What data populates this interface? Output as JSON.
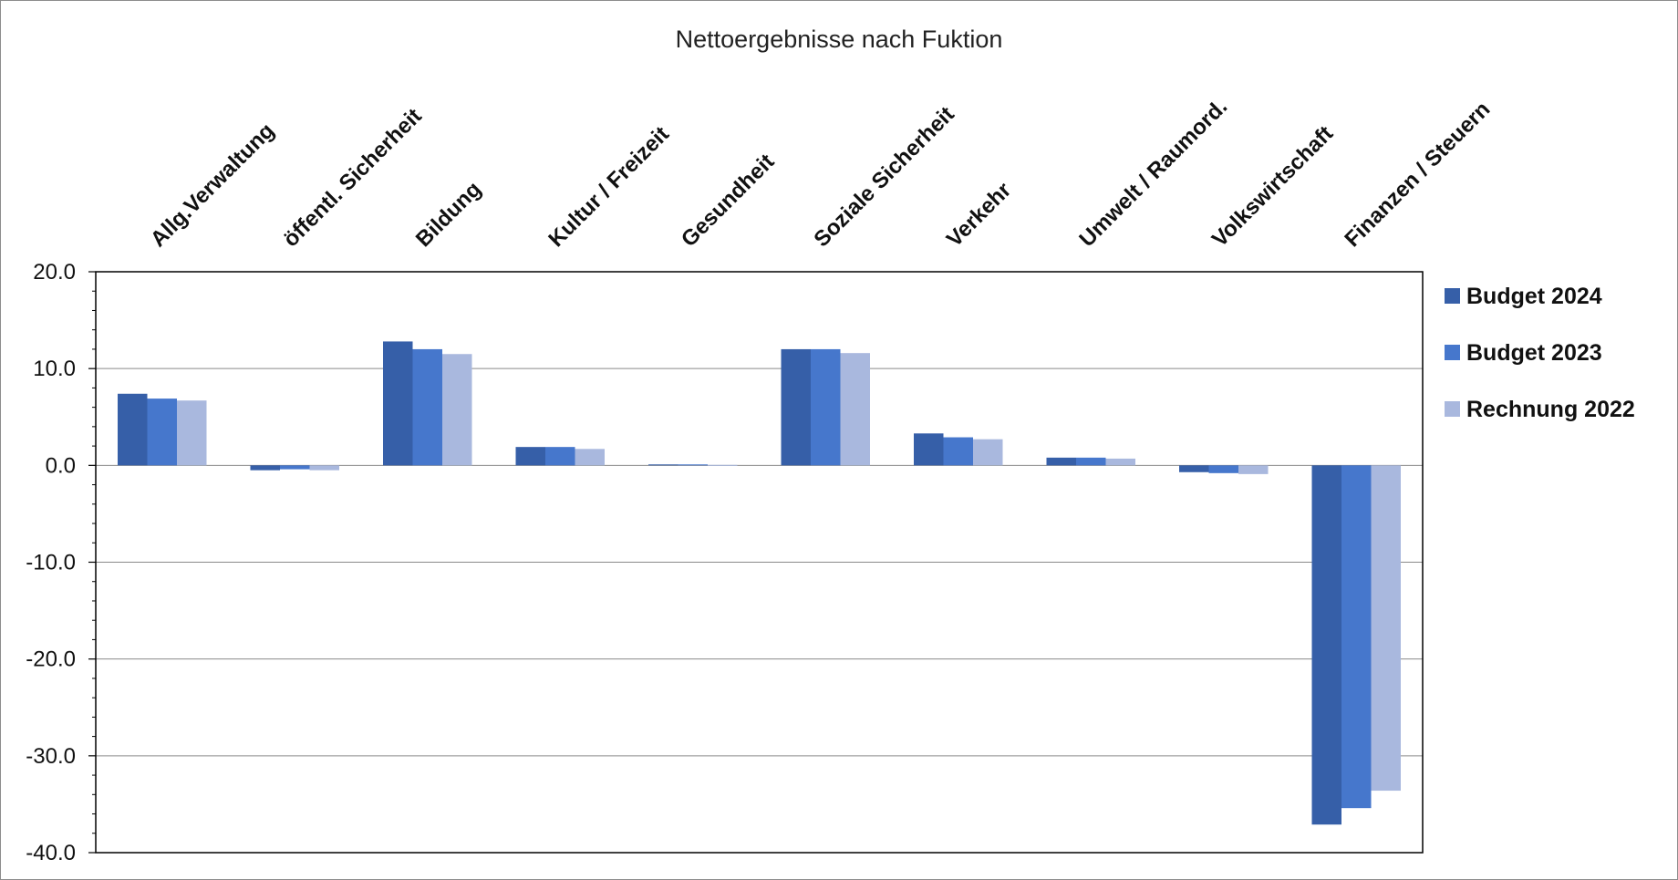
{
  "chart_data": {
    "type": "bar",
    "title": "Nettoergebnisse nach Fuktion",
    "xlabel": "",
    "ylabel": "",
    "ylim": [
      -40,
      20
    ],
    "yticks": [
      "20.0",
      "10.0",
      "0.0",
      "-10.0",
      "-20.0",
      "-30.0",
      "-40.0"
    ],
    "grid": true,
    "legend_position": "right",
    "category_label_position": "top",
    "categories": [
      "Allg.Verwaltung",
      "öffentl. Sicherheit",
      "Bildung",
      "Kultur / Freizeit",
      "Gesundheit",
      "Soziale Sicherheit",
      "Verkehr",
      "Umwelt / Raumord.",
      "Volkswirtschaft",
      "Finanzen / Steuern"
    ],
    "series": [
      {
        "name": "Budget 2024",
        "color": "#365fa8",
        "values": [
          7.4,
          -0.5,
          12.8,
          1.9,
          0.1,
          12.0,
          3.3,
          0.8,
          -0.7,
          -37.1
        ]
      },
      {
        "name": "Budget 2023",
        "color": "#4677cc",
        "values": [
          6.9,
          -0.4,
          12.0,
          1.9,
          0.1,
          12.0,
          2.9,
          0.8,
          -0.8,
          -35.4
        ]
      },
      {
        "name": "Rechnung 2022",
        "color": "#a9b8de",
        "values": [
          6.7,
          -0.5,
          11.5,
          1.7,
          0.05,
          11.6,
          2.7,
          0.7,
          -0.9,
          -33.6
        ]
      }
    ]
  }
}
